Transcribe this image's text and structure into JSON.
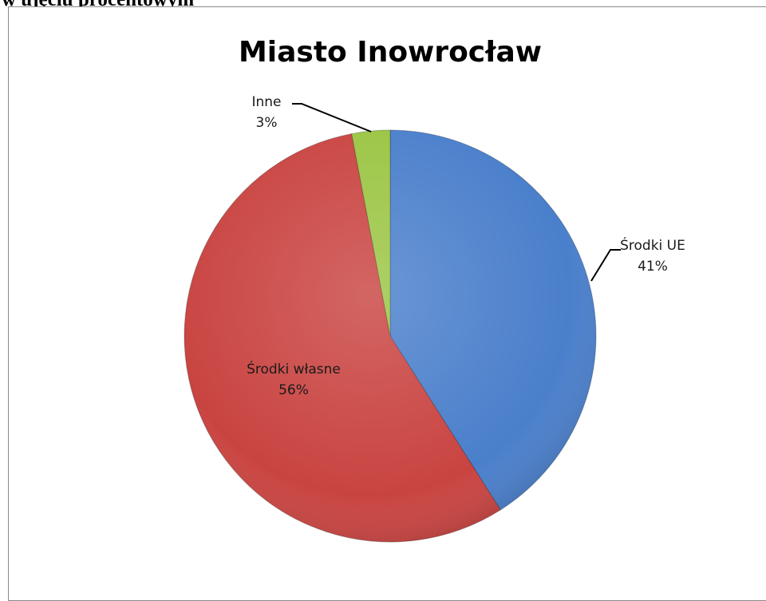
{
  "document": {
    "heading_fragment": "w ujęciu procentowym"
  },
  "chart_data": {
    "type": "pie",
    "title": "Miasto Inowrocław",
    "slices": [
      {
        "name": "Środki UE",
        "value": 41,
        "pct_label": "41%",
        "color": "#4a7fcb"
      },
      {
        "name": "Środki własne",
        "value": 56,
        "pct_label": "56%",
        "color": "#c94441"
      },
      {
        "name": "Inne",
        "value": 3,
        "pct_label": "3%",
        "color": "#9bc543"
      }
    ],
    "start_angle_deg": 0,
    "direction": "clockwise"
  }
}
